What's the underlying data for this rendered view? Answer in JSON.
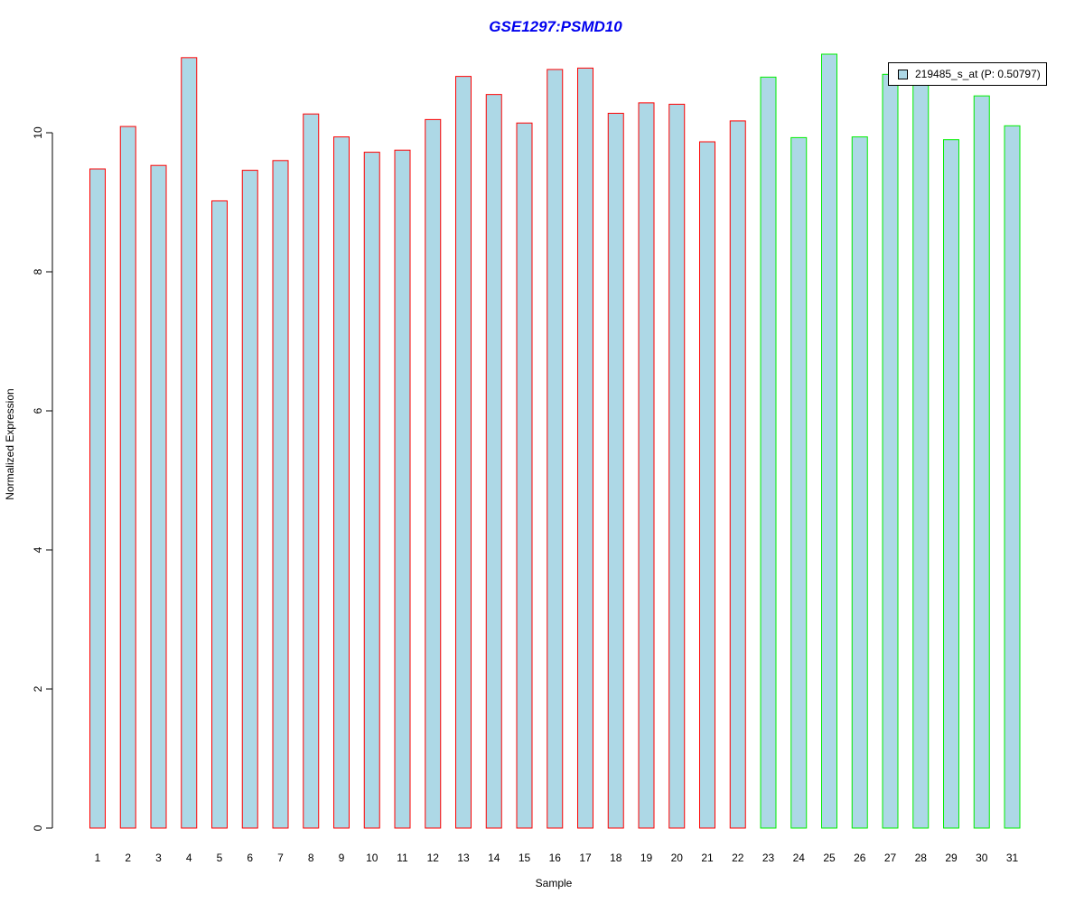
{
  "chart_data": {
    "type": "bar",
    "title": "GSE1297:PSMD10",
    "xlabel": "Sample",
    "ylabel": "Normalized Expression",
    "ylim": [
      0,
      11.2
    ],
    "yticks": [
      "0",
      "2",
      "4",
      "6",
      "8",
      "10"
    ],
    "categories": [
      "1",
      "2",
      "3",
      "4",
      "5",
      "6",
      "7",
      "8",
      "9",
      "10",
      "11",
      "12",
      "13",
      "14",
      "15",
      "16",
      "17",
      "18",
      "19",
      "20",
      "21",
      "22",
      "23",
      "24",
      "25",
      "26",
      "27",
      "28",
      "29",
      "30",
      "31"
    ],
    "series": [
      {
        "name": "219485_s_at (P: 0.50797)",
        "values": [
          9.48,
          10.09,
          9.53,
          11.08,
          9.02,
          9.46,
          9.6,
          10.27,
          9.94,
          9.72,
          9.75,
          10.19,
          10.81,
          10.55,
          10.14,
          10.91,
          10.93,
          10.28,
          10.43,
          10.41,
          9.87,
          10.17,
          10.8,
          9.93,
          11.13,
          9.94,
          10.84,
          10.83,
          9.9,
          10.53,
          10.1
        ]
      }
    ],
    "group_colors": [
      "#ff0000",
      "#ff0000",
      "#ff0000",
      "#ff0000",
      "#ff0000",
      "#ff0000",
      "#ff0000",
      "#ff0000",
      "#ff0000",
      "#ff0000",
      "#ff0000",
      "#ff0000",
      "#ff0000",
      "#ff0000",
      "#ff0000",
      "#ff0000",
      "#ff0000",
      "#ff0000",
      "#ff0000",
      "#ff0000",
      "#ff0000",
      "#ff0000",
      "#00ee00",
      "#00ee00",
      "#00ee00",
      "#00ee00",
      "#00ee00",
      "#00ee00",
      "#00ee00",
      "#00ee00",
      "#00ee00"
    ],
    "bar_fill": "#add8e6",
    "title_color": "#0000ee",
    "legend": {
      "label": "219485_s_at (P: 0.50797)",
      "position": "top-right"
    },
    "grid": false
  }
}
